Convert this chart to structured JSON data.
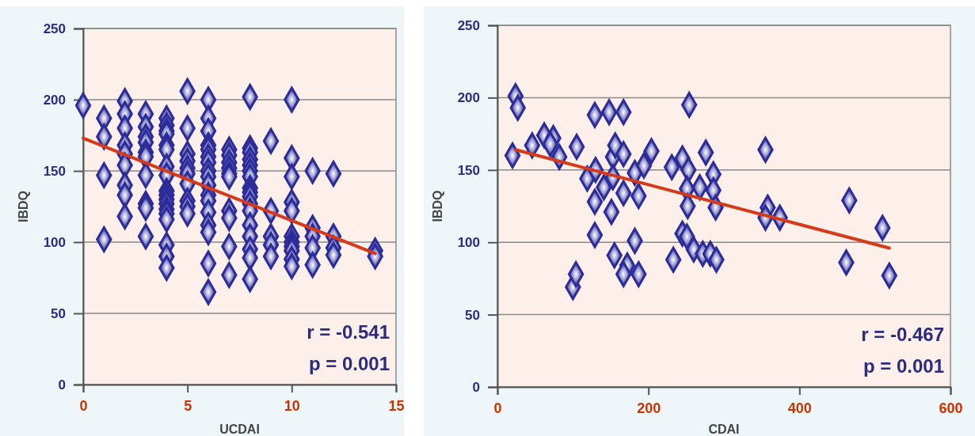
{
  "chart_data": [
    {
      "type": "scatter",
      "xlabel": "UCDAI",
      "ylabel": "IBDQ",
      "xlim": [
        0,
        15
      ],
      "ylim": [
        0,
        250
      ],
      "xticks": [
        0,
        5,
        10,
        15
      ],
      "yticks": [
        0,
        50,
        100,
        150,
        200,
        250
      ],
      "grid": "y",
      "annotations": [
        "r = -0.541",
        "p = 0.001"
      ],
      "series": [
        {
          "marker": "diamond",
          "color": "#2b2b9a",
          "x": [
            0,
            1,
            1,
            1,
            1,
            2,
            2,
            2,
            2,
            2,
            2,
            2,
            2,
            2,
            3,
            3,
            3,
            3,
            3,
            3,
            3,
            3,
            3,
            3,
            4,
            4,
            4,
            4,
            4,
            4,
            4,
            4,
            4,
            4,
            4,
            4,
            4,
            4,
            4,
            4,
            4,
            4,
            5,
            5,
            5,
            5,
            5,
            5,
            5,
            5,
            5,
            5,
            6,
            6,
            6,
            6,
            6,
            6,
            6,
            6,
            6,
            6,
            6,
            6,
            6,
            6,
            6,
            6,
            6,
            7,
            7,
            7,
            7,
            7,
            7,
            7,
            7,
            7,
            7,
            8,
            8,
            8,
            8,
            8,
            8,
            8,
            8,
            8,
            8,
            8,
            8,
            8,
            8,
            8,
            8,
            8,
            9,
            9,
            9,
            9,
            9,
            10,
            10,
            10,
            10,
            10,
            10,
            10,
            10,
            10,
            10,
            10,
            11,
            11,
            11,
            11,
            11,
            12,
            12,
            12,
            12,
            14,
            14
          ],
          "values": [
            196,
            187,
            174,
            147,
            102,
            199,
            190,
            180,
            168,
            162,
            154,
            140,
            133,
            118,
            190,
            181,
            174,
            170,
            163,
            160,
            147,
            127,
            124,
            104,
            187,
            182,
            178,
            176,
            168,
            165,
            153,
            147,
            136,
            133,
            130,
            127,
            123,
            120,
            116,
            98,
            90,
            82,
            206,
            180,
            162,
            157,
            152,
            148,
            141,
            129,
            125,
            120,
            200,
            187,
            178,
            168,
            165,
            160,
            156,
            150,
            146,
            140,
            133,
            129,
            121,
            112,
            107,
            85,
            65,
            165,
            161,
            156,
            152,
            148,
            146,
            122,
            117,
            97,
            77,
            202,
            166,
            163,
            158,
            154,
            150,
            146,
            138,
            135,
            132,
            127,
            122,
            112,
            104,
            95,
            89,
            74,
            171,
            122,
            104,
            98,
            90,
            200,
            159,
            146,
            128,
            122,
            104,
            100,
            97,
            94,
            88,
            83,
            150,
            110,
            104,
            96,
            84,
            148,
            104,
            96,
            91,
            94,
            90
          ]
        },
        {
          "type": "line",
          "color": "#d63a1a",
          "x": [
            0,
            14
          ],
          "values": [
            173,
            92
          ]
        }
      ]
    },
    {
      "type": "scatter",
      "xlabel": "CDAI",
      "ylabel": "IBDQ",
      "xlim": [
        0,
        600
      ],
      "ylim": [
        0,
        250
      ],
      "xticks": [
        0,
        200,
        400,
        600
      ],
      "yticks": [
        0,
        50,
        100,
        150,
        200,
        250
      ],
      "grid": "y",
      "annotations": [
        "r = -0.467",
        "p = 0.001"
      ],
      "series": [
        {
          "marker": "diamond",
          "color": "#2b2b9a",
          "x": [
            20,
            24,
            27,
            46,
            62,
            74,
            70,
            82,
            105,
            100,
            104,
            129,
            148,
            167,
            119,
            130,
            129,
            141,
            129,
            151,
            153,
            156,
            153,
            167,
            167,
            182,
            187,
            194,
            204,
            182,
            155,
            172,
            167,
            187,
            231,
            245,
            254,
            253,
            251,
            268,
            252,
            276,
            286,
            286,
            289,
            245,
            251,
            260,
            272,
            282,
            290,
            233,
            355,
            358,
            355,
            374,
            466,
            462,
            510,
            519
          ],
          "values": [
            160,
            201,
            193,
            167,
            174,
            172,
            168,
            159,
            166,
            69,
            78,
            188,
            190,
            190,
            144,
            150,
            128,
            138,
            105,
            121,
            159,
            167,
            145,
            161,
            134,
            148,
            132,
            153,
            163,
            101,
            91,
            84,
            78,
            78,
            152,
            158,
            195,
            150,
            137,
            138,
            125,
            162,
            147,
            136,
            124,
            106,
            104,
            95,
            92,
            92,
            88,
            88,
            164,
            124,
            117,
            117,
            129,
            86,
            110,
            77
          ]
        },
        {
          "type": "line",
          "color": "#d63a1a",
          "x": [
            24,
            519
          ],
          "values": [
            164,
            96
          ]
        }
      ]
    }
  ]
}
